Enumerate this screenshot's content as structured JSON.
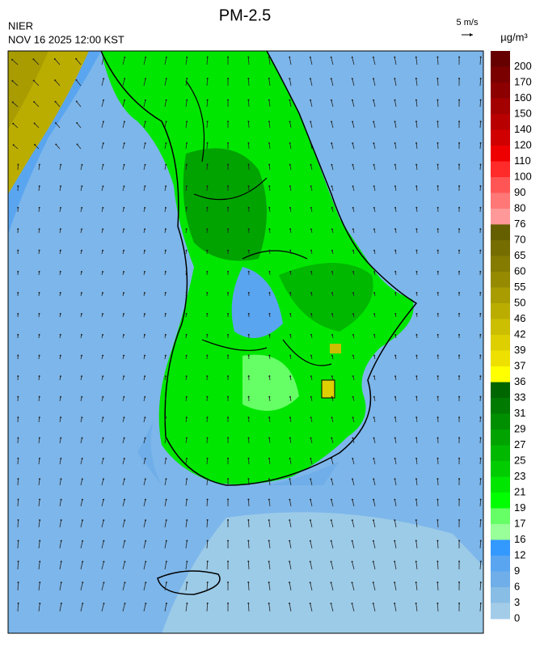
{
  "header": {
    "title": "PM-2.5",
    "org": "NIER",
    "datetime": "NOV 16 2025 12:00 KST"
  },
  "wind_legend": {
    "label": "5 m/s"
  },
  "colorbar": {
    "unit": "µg/m³",
    "levels": [
      200,
      170,
      160,
      150,
      140,
      120,
      110,
      100,
      90,
      80,
      76,
      70,
      65,
      60,
      55,
      50,
      46,
      42,
      39,
      37,
      36,
      33,
      31,
      29,
      27,
      25,
      23,
      21,
      19,
      17,
      16,
      12,
      9,
      6,
      3,
      0
    ],
    "colors": [
      "#660000",
      "#7a0000",
      "#8c0000",
      "#a30000",
      "#b80000",
      "#d00000",
      "#ee0000",
      "#ff2a2a",
      "#ff5555",
      "#ff7777",
      "#ff9999",
      "#665f00",
      "#756d00",
      "#857b00",
      "#958a00",
      "#a89c00",
      "#bbad00",
      "#ccbe00",
      "#ddcf00",
      "#eee000",
      "#ffff00",
      "#006600",
      "#007a00",
      "#008f00",
      "#00a300",
      "#00b800",
      "#00cc00",
      "#00e600",
      "#00ff00",
      "#66ff66",
      "#99ff99",
      "#3399ff",
      "#5aa5f0",
      "#6faee8",
      "#88bde6",
      "#a3cce8"
    ]
  }
}
